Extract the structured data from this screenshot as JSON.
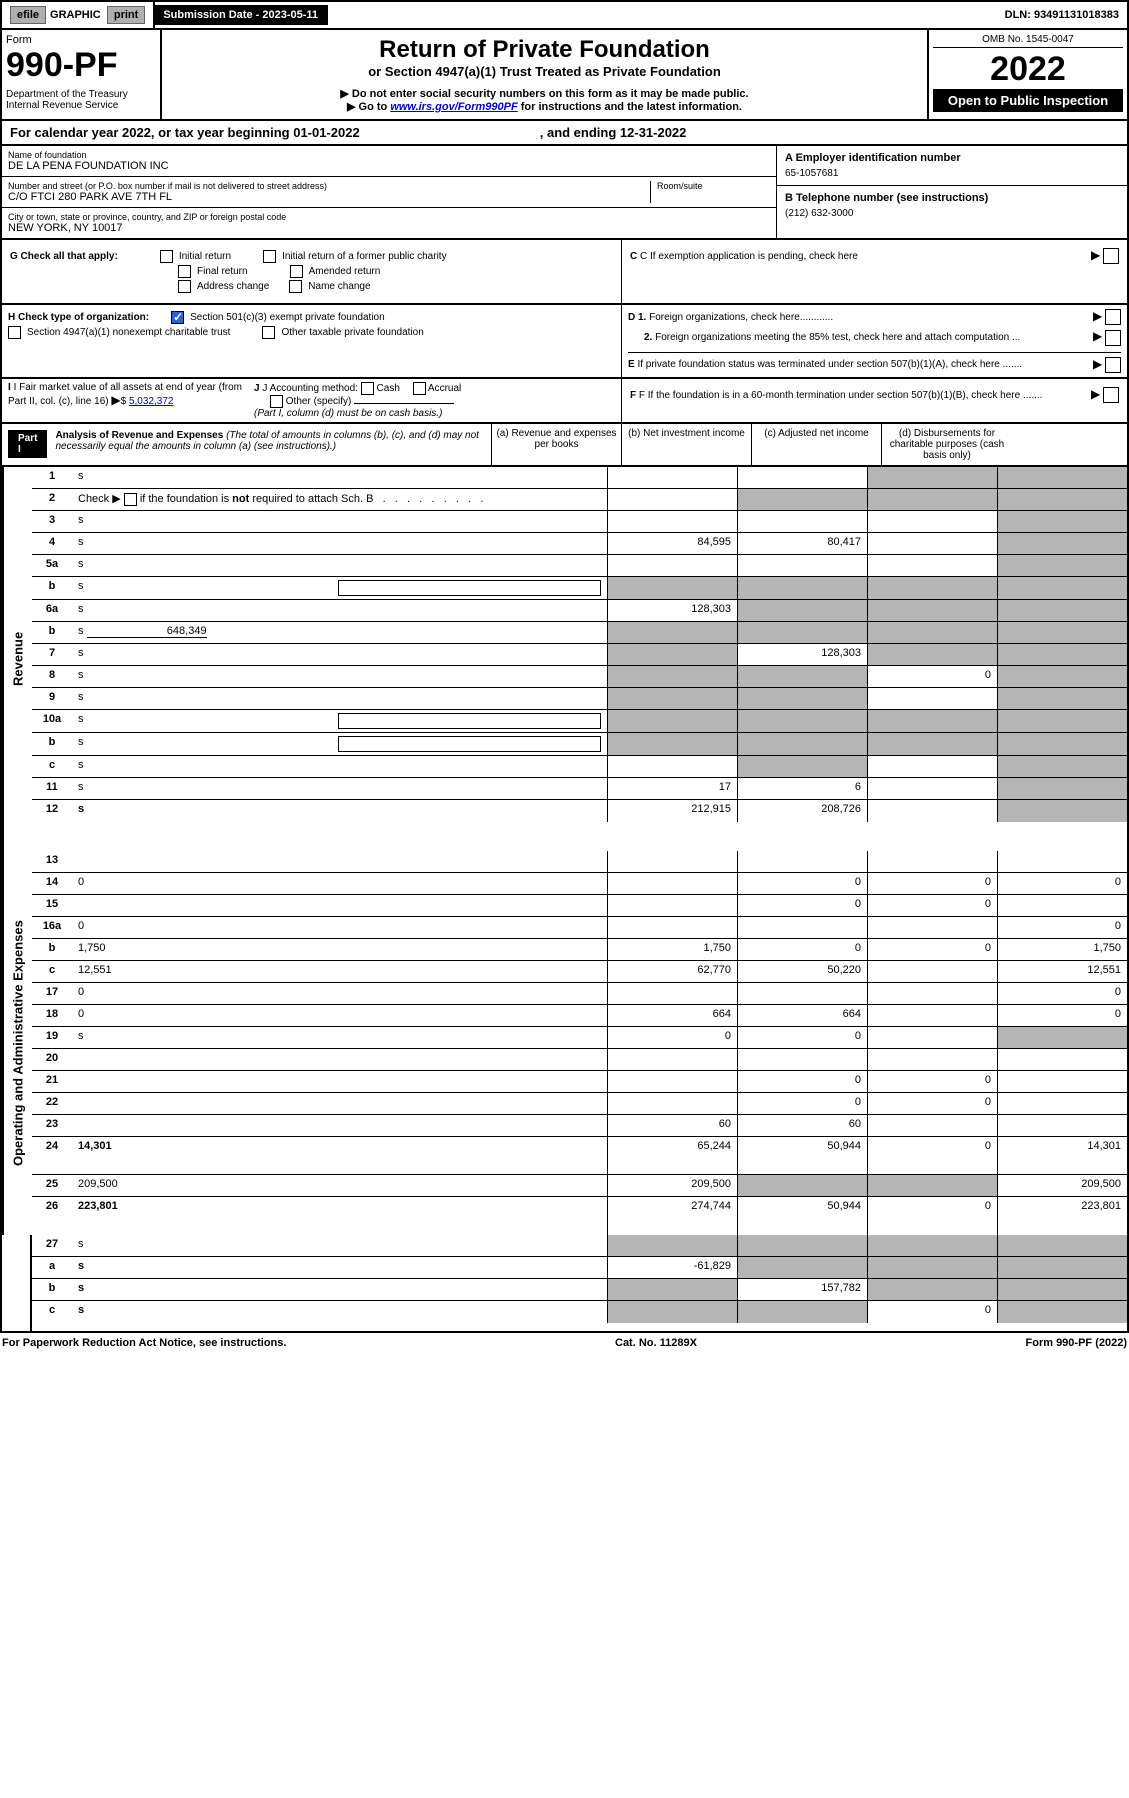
{
  "topbar": {
    "efile": "efile",
    "graphic": "GRAPHIC",
    "print": "print",
    "sub_label": "Submission Date - 2023-05-11",
    "dln": "DLN: 93491131018383"
  },
  "header": {
    "form": "Form",
    "num": "990-PF",
    "dept": "Department of the Treasury",
    "irs": "Internal Revenue Service",
    "title": "Return of Private Foundation",
    "sub": "or Section 4947(a)(1) Trust Treated as Private Foundation",
    "warn": "▶ Do not enter social security numbers on this form as it may be made public.",
    "goto": "▶ Go to ",
    "url": "www.irs.gov/Form990PF",
    "goto2": " for instructions and the latest information.",
    "omb": "OMB No. 1545-0047",
    "year": "2022",
    "open": "Open to Public Inspection"
  },
  "cal": {
    "text": "For calendar year 2022, or tax year beginning 01-01-2022",
    "end": ", and ending 12-31-2022"
  },
  "id": {
    "name_label": "Name of foundation",
    "name": "DE LA PENA FOUNDATION INC",
    "addr_label": "Number and street (or P.O. box number if mail is not delivered to street address)",
    "addr": "C/O FTCI 280 PARK AVE 7TH FL",
    "room_label": "Room/suite",
    "city_label": "City or town, state or province, country, and ZIP or foreign postal code",
    "city": "NEW YORK, NY  10017",
    "a_label": "A Employer identification number",
    "a_val": "65-1057681",
    "b_label": "B Telephone number (see instructions)",
    "b_val": "(212) 632-3000",
    "c_label": "C If exemption application is pending, check here",
    "d1": "D 1. Foreign organizations, check here............",
    "d2": "2. Foreign organizations meeting the 85% test, check here and attach computation ...",
    "e": "E If private foundation status was terminated under section 507(b)(1)(A), check here .......",
    "f": "F If the foundation is in a 60-month termination under section 507(b)(1)(B), check here .......",
    "g": "G Check all that apply:",
    "g_opts": [
      "Initial return",
      "Initial return of a former public charity",
      "Final return",
      "Amended return",
      "Address change",
      "Name change"
    ],
    "h": "H Check type of organization:",
    "h1": "Section 501(c)(3) exempt private foundation",
    "h2": "Section 4947(a)(1) nonexempt charitable trust",
    "h3": "Other taxable private foundation",
    "i": "I Fair market value of all assets at end of year (from Part II, col. (c), line 16)",
    "i_val": "5,032,372",
    "j": "J Accounting method:",
    "j_opts": [
      "Cash",
      "Accrual"
    ],
    "j_other": "Other (specify)",
    "j_note": "(Part I, column (d) must be on cash basis.)"
  },
  "part1": {
    "label": "Part I",
    "title": "Analysis of Revenue and Expenses",
    "note": "(The total of amounts in columns (b), (c), and (d) may not necessarily equal the amounts in column (a) (see instructions).)",
    "cols": {
      "a": "(a) Revenue and expenses per books",
      "b": "(b) Net investment income",
      "c": "(c) Adjusted net income",
      "d": "(d) Disbursements for charitable purposes (cash basis only)"
    }
  },
  "sections": {
    "revenue": "Revenue",
    "opex": "Operating and Administrative Expenses"
  },
  "rows": [
    {
      "n": "1",
      "d": "s",
      "a": "",
      "b": "",
      "c": "s",
      "sec": "rev"
    },
    {
      "n": "2",
      "d": "s",
      "a": "",
      "b": "s",
      "c": "s",
      "sec": "rev",
      "dots": true,
      "html": true
    },
    {
      "n": "3",
      "d": "s",
      "a": "",
      "b": "",
      "c": "",
      "sec": "rev"
    },
    {
      "n": "4",
      "d": "s",
      "a": "84,595",
      "b": "80,417",
      "c": "",
      "sec": "rev"
    },
    {
      "n": "5a",
      "d": "s",
      "a": "",
      "b": "",
      "c": "",
      "sec": "rev"
    },
    {
      "n": "b",
      "d": "s",
      "a": "s",
      "b": "s",
      "c": "s",
      "sec": "rev",
      "box": true
    },
    {
      "n": "6a",
      "d": "s",
      "a": "128,303",
      "b": "s",
      "c": "s",
      "sec": "rev"
    },
    {
      "n": "b",
      "d": "s",
      "a": "s",
      "b": "s",
      "c": "s",
      "sec": "rev",
      "inline": "648,349"
    },
    {
      "n": "7",
      "d": "s",
      "a": "s",
      "b": "128,303",
      "c": "s",
      "sec": "rev"
    },
    {
      "n": "8",
      "d": "s",
      "a": "s",
      "b": "s",
      "c": "0",
      "sec": "rev"
    },
    {
      "n": "9",
      "d": "s",
      "a": "s",
      "b": "s",
      "c": "",
      "sec": "rev"
    },
    {
      "n": "10a",
      "d": "s",
      "a": "s",
      "b": "s",
      "c": "s",
      "sec": "rev",
      "box": true
    },
    {
      "n": "b",
      "d": "s",
      "a": "s",
      "b": "s",
      "c": "s",
      "sec": "rev",
      "box": true
    },
    {
      "n": "c",
      "d": "s",
      "a": "",
      "b": "s",
      "c": "",
      "sec": "rev"
    },
    {
      "n": "11",
      "d": "s",
      "a": "17",
      "b": "6",
      "c": "",
      "sec": "rev"
    },
    {
      "n": "12",
      "d": "s",
      "a": "212,915",
      "b": "208,726",
      "c": "",
      "sec": "rev",
      "bold": true
    },
    {
      "n": "13",
      "d": "",
      "a": "",
      "b": "",
      "c": "",
      "sec": "op"
    },
    {
      "n": "14",
      "d": "0",
      "a": "",
      "b": "0",
      "c": "0",
      "sec": "op"
    },
    {
      "n": "15",
      "d": "",
      "a": "",
      "b": "0",
      "c": "0",
      "sec": "op"
    },
    {
      "n": "16a",
      "d": "0",
      "a": "",
      "b": "",
      "c": "",
      "sec": "op"
    },
    {
      "n": "b",
      "d": "1,750",
      "a": "1,750",
      "b": "0",
      "c": "0",
      "sec": "op"
    },
    {
      "n": "c",
      "d": "12,551",
      "a": "62,770",
      "b": "50,220",
      "c": "",
      "sec": "op"
    },
    {
      "n": "17",
      "d": "0",
      "a": "",
      "b": "",
      "c": "",
      "sec": "op"
    },
    {
      "n": "18",
      "d": "0",
      "a": "664",
      "b": "664",
      "c": "",
      "sec": "op"
    },
    {
      "n": "19",
      "d": "s",
      "a": "0",
      "b": "0",
      "c": "",
      "sec": "op"
    },
    {
      "n": "20",
      "d": "",
      "a": "",
      "b": "",
      "c": "",
      "sec": "op"
    },
    {
      "n": "21",
      "d": "",
      "a": "",
      "b": "0",
      "c": "0",
      "sec": "op"
    },
    {
      "n": "22",
      "d": "",
      "a": "",
      "b": "0",
      "c": "0",
      "sec": "op"
    },
    {
      "n": "23",
      "d": "",
      "a": "60",
      "b": "60",
      "c": "",
      "sec": "op"
    },
    {
      "n": "24",
      "d": "14,301",
      "a": "65,244",
      "b": "50,944",
      "c": "0",
      "sec": "op",
      "bold": true,
      "tall": true
    },
    {
      "n": "25",
      "d": "209,500",
      "a": "209,500",
      "b": "s",
      "c": "s",
      "sec": "op"
    },
    {
      "n": "26",
      "d": "223,801",
      "a": "274,744",
      "b": "50,944",
      "c": "0",
      "sec": "op",
      "bold": true,
      "tall": true
    },
    {
      "n": "27",
      "d": "s",
      "a": "s",
      "b": "s",
      "c": "s",
      "sec": "bot"
    },
    {
      "n": "a",
      "d": "s",
      "a": "-61,829",
      "b": "s",
      "c": "s",
      "sec": "bot",
      "bold": true
    },
    {
      "n": "b",
      "d": "s",
      "a": "s",
      "b": "157,782",
      "c": "s",
      "sec": "bot",
      "bold": true
    },
    {
      "n": "c",
      "d": "s",
      "a": "s",
      "b": "s",
      "c": "0",
      "sec": "bot",
      "bold": true
    }
  ],
  "footer": {
    "left": "For Paperwork Reduction Act Notice, see instructions.",
    "mid": "Cat. No. 11289X",
    "right": "Form 990-PF (2022)"
  },
  "colors": {
    "shaded": "#b5b5b5",
    "link": "#0000cc",
    "check": "#2962d9"
  }
}
